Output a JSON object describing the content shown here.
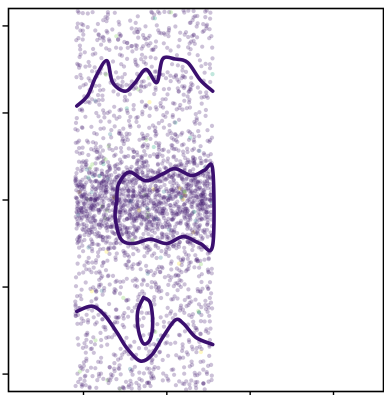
{
  "chart_data": {
    "type": "scatter",
    "title": "",
    "xlabel": "",
    "ylabel": "",
    "xlim": [
      -0.9,
      3.6
    ],
    "ylim": [
      -2.2,
      2.2
    ],
    "x_ticks": [
      0,
      1,
      2,
      3
    ],
    "y_ticks": [
      -2,
      -1,
      0,
      1,
      2
    ],
    "tick_labels_visible": false,
    "grid": false,
    "legend": "none",
    "colors": {
      "points_primary": "#482173",
      "points_secondary": [
        "#2a788e",
        "#22a884",
        "#7ad151",
        "#fde725"
      ],
      "contour": "#3b0f6f",
      "axes": "#000000"
    },
    "scatter": {
      "x_range": [
        -0.1,
        1.55
      ],
      "y_range": [
        -2.2,
        2.2
      ],
      "approx_points": 2600,
      "dense_band_y": [
        -0.55,
        0.55
      ]
    },
    "contours": [
      {
        "name": "upper",
        "points": [
          [
            -0.08,
            1.08
          ],
          [
            0.05,
            1.2
          ],
          [
            0.15,
            1.42
          ],
          [
            0.28,
            1.6
          ],
          [
            0.35,
            1.35
          ],
          [
            0.5,
            1.25
          ],
          [
            0.62,
            1.35
          ],
          [
            0.75,
            1.5
          ],
          [
            0.88,
            1.35
          ],
          [
            0.95,
            1.62
          ],
          [
            1.1,
            1.62
          ],
          [
            1.25,
            1.58
          ],
          [
            1.4,
            1.38
          ],
          [
            1.55,
            1.25
          ]
        ]
      },
      {
        "name": "middle",
        "points": [
          [
            0.4,
            0.0
          ],
          [
            0.42,
            0.18
          ],
          [
            0.55,
            0.32
          ],
          [
            0.75,
            0.22
          ],
          [
            0.95,
            0.3
          ],
          [
            1.1,
            0.36
          ],
          [
            1.3,
            0.28
          ],
          [
            1.45,
            0.34
          ],
          [
            1.55,
            0.35
          ],
          [
            1.55,
            -0.52
          ],
          [
            1.4,
            -0.5
          ],
          [
            1.2,
            -0.42
          ],
          [
            1.0,
            -0.5
          ],
          [
            0.8,
            -0.45
          ],
          [
            0.6,
            -0.5
          ],
          [
            0.45,
            -0.45
          ],
          [
            0.38,
            -0.2
          ],
          [
            0.4,
            0.0
          ]
        ]
      },
      {
        "name": "lower-left",
        "points": [
          [
            -0.08,
            -1.28
          ],
          [
            0.1,
            -1.22
          ],
          [
            0.25,
            -1.32
          ],
          [
            0.4,
            -1.52
          ],
          [
            0.52,
            -1.7
          ],
          [
            0.68,
            -1.85
          ],
          [
            0.82,
            -1.78
          ],
          [
            0.95,
            -1.58
          ],
          [
            1.1,
            -1.38
          ],
          [
            1.2,
            -1.42
          ],
          [
            1.35,
            -1.58
          ],
          [
            1.55,
            -1.66
          ]
        ]
      },
      {
        "name": "lower-loop",
        "points": [
          [
            0.72,
            -1.12
          ],
          [
            0.8,
            -1.18
          ],
          [
            0.83,
            -1.4
          ],
          [
            0.8,
            -1.6
          ],
          [
            0.72,
            -1.65
          ],
          [
            0.66,
            -1.5
          ],
          [
            0.65,
            -1.28
          ],
          [
            0.72,
            -1.12
          ]
        ]
      }
    ]
  }
}
